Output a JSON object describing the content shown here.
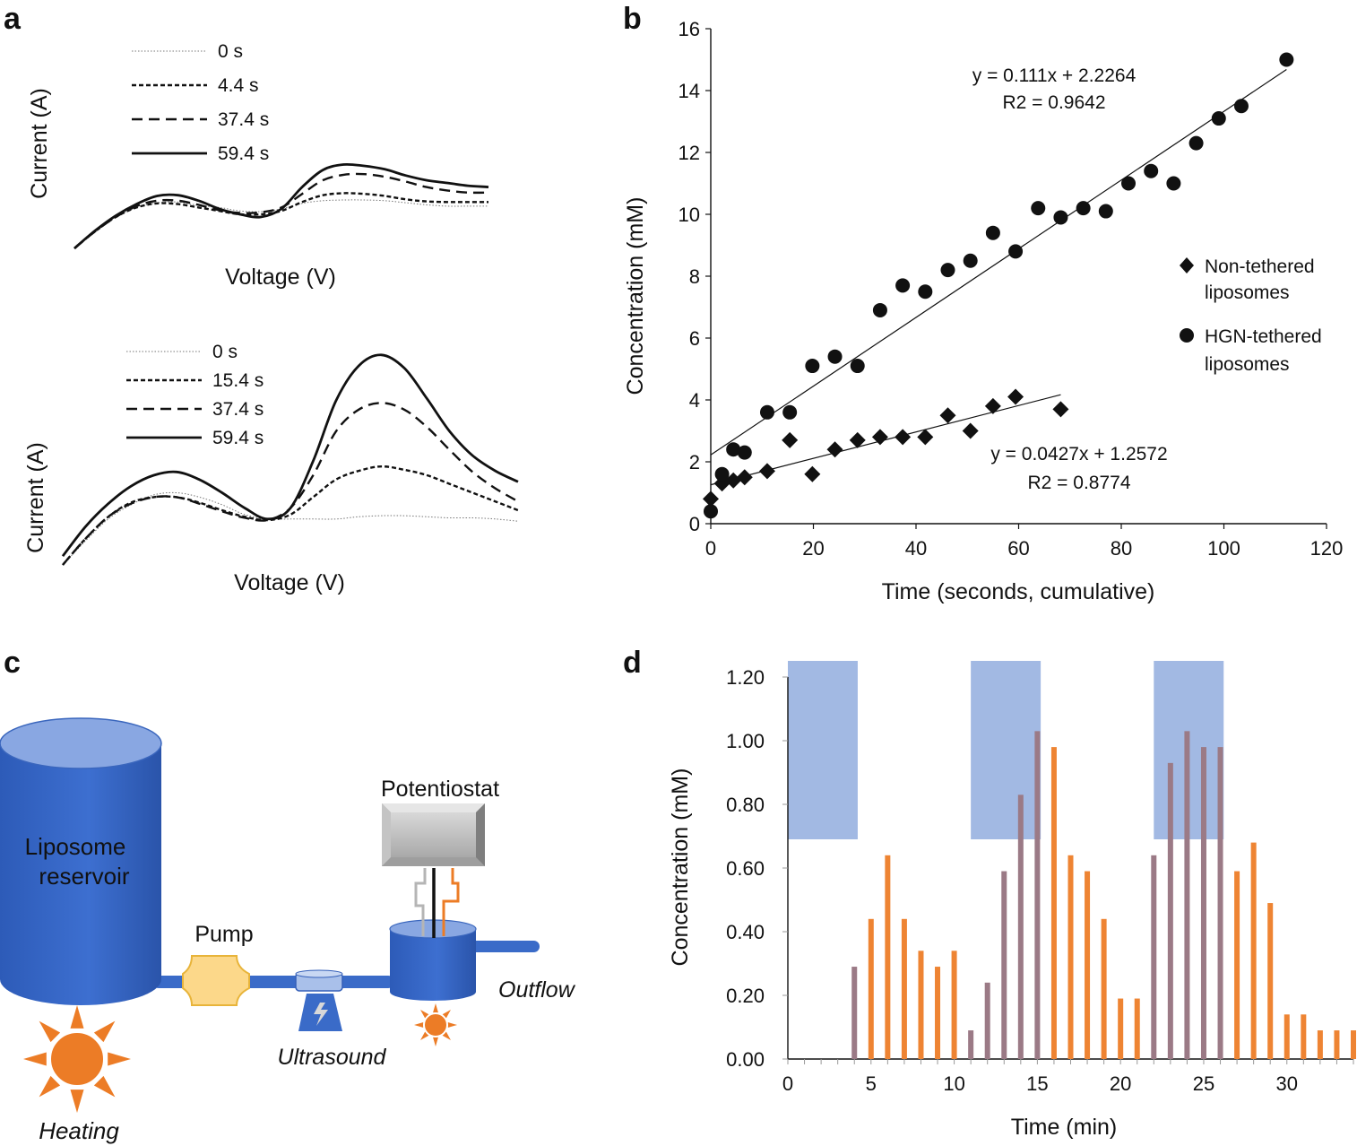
{
  "panel_labels": [
    "a",
    "b",
    "c",
    "d"
  ],
  "chart_data": [
    {
      "id": "a_top",
      "type": "line",
      "xlabel": "Voltage (V)",
      "ylabel": "Current (A)",
      "legend": [
        {
          "label": "0 s",
          "style": "dotted"
        },
        {
          "label": "4.4 s",
          "style": "short-dash"
        },
        {
          "label": "37.4 s",
          "style": "long-dash"
        },
        {
          "label": "59.4 s",
          "style": "solid"
        }
      ],
      "x": [
        0,
        0.05,
        0.1,
        0.15,
        0.2,
        0.25,
        0.3,
        0.35,
        0.4,
        0.45,
        0.5,
        0.55,
        0.6,
        0.65,
        0.7,
        0.75,
        0.8,
        0.85,
        0.9,
        0.95,
        1.0
      ],
      "series": [
        {
          "name": "0 s",
          "values": [
            0,
            0.25,
            0.46,
            0.6,
            0.67,
            0.68,
            0.63,
            0.6,
            0.55,
            0.54,
            0.58,
            0.66,
            0.7,
            0.71,
            0.71,
            0.7,
            0.67,
            0.64,
            0.62,
            0.62,
            0.62
          ]
        },
        {
          "name": "4.4 s",
          "values": [
            0,
            0.25,
            0.46,
            0.6,
            0.66,
            0.65,
            0.6,
            0.55,
            0.5,
            0.5,
            0.55,
            0.68,
            0.78,
            0.81,
            0.8,
            0.77,
            0.72,
            0.69,
            0.68,
            0.68,
            0.68
          ]
        },
        {
          "name": "37.4 s",
          "values": [
            0,
            0.25,
            0.46,
            0.62,
            0.7,
            0.7,
            0.64,
            0.56,
            0.52,
            0.53,
            0.6,
            0.8,
            1.0,
            1.08,
            1.09,
            1.05,
            0.98,
            0.9,
            0.85,
            0.82,
            0.82
          ]
        },
        {
          "name": "59.4 s",
          "values": [
            0,
            0.26,
            0.48,
            0.65,
            0.77,
            0.78,
            0.7,
            0.58,
            0.5,
            0.46,
            0.58,
            0.9,
            1.15,
            1.23,
            1.21,
            1.16,
            1.07,
            1.0,
            0.96,
            0.92,
            0.9
          ]
        }
      ]
    },
    {
      "id": "a_bottom",
      "type": "line",
      "xlabel": "Voltage (V)",
      "ylabel": "Current (A)",
      "legend": [
        {
          "label": "0 s",
          "style": "dotted"
        },
        {
          "label": "15.4 s",
          "style": "short-dash"
        },
        {
          "label": "37.4 s",
          "style": "long-dash"
        },
        {
          "label": "59.4 s",
          "style": "solid"
        }
      ],
      "x": [
        0,
        0.05,
        0.1,
        0.15,
        0.2,
        0.25,
        0.3,
        0.35,
        0.4,
        0.45,
        0.5,
        0.55,
        0.6,
        0.65,
        0.7,
        0.75,
        0.8,
        0.85,
        0.9,
        0.95,
        1.0
      ],
      "series": [
        {
          "name": "0 s",
          "values": [
            0,
            0.22,
            0.42,
            0.55,
            0.64,
            0.66,
            0.62,
            0.55,
            0.46,
            0.42,
            0.42,
            0.42,
            0.42,
            0.44,
            0.45,
            0.45,
            0.44,
            0.43,
            0.43,
            0.42,
            0.4
          ]
        },
        {
          "name": "15.4 s",
          "values": [
            0,
            0.24,
            0.44,
            0.57,
            0.62,
            0.62,
            0.57,
            0.5,
            0.44,
            0.41,
            0.46,
            0.62,
            0.78,
            0.86,
            0.9,
            0.87,
            0.82,
            0.74,
            0.66,
            0.58,
            0.5
          ]
        },
        {
          "name": "37.4 s",
          "values": [
            0,
            0.24,
            0.44,
            0.56,
            0.62,
            0.62,
            0.56,
            0.49,
            0.43,
            0.41,
            0.52,
            0.82,
            1.22,
            1.42,
            1.48,
            1.42,
            1.26,
            1.05,
            0.85,
            0.7,
            0.58
          ]
        },
        {
          "name": "59.4 s",
          "values": [
            0.08,
            0.35,
            0.56,
            0.72,
            0.82,
            0.85,
            0.78,
            0.66,
            0.52,
            0.42,
            0.52,
            0.95,
            1.5,
            1.82,
            1.92,
            1.8,
            1.52,
            1.22,
            1.0,
            0.86,
            0.76
          ]
        }
      ]
    },
    {
      "id": "b",
      "type": "scatter",
      "xlabel": "Time (seconds, cumulative)",
      "ylabel": "Concentration (mM)",
      "xlim": [
        0,
        120
      ],
      "ylim": [
        0,
        16
      ],
      "xticks": [
        0,
        20,
        40,
        60,
        80,
        100,
        120
      ],
      "yticks": [
        0,
        2,
        4,
        6,
        8,
        10,
        12,
        14,
        16
      ],
      "series": [
        {
          "name": "Non-tethered liposomes",
          "marker": "diamond",
          "x": [
            0,
            2.2,
            4.4,
            6.6,
            11,
            15.4,
            19.8,
            24.2,
            28.6,
            33,
            37.4,
            41.8,
            46.2,
            50.6,
            55,
            59.4,
            68.2
          ],
          "y": [
            0.8,
            1.3,
            1.4,
            1.5,
            1.7,
            2.7,
            1.6,
            2.4,
            2.7,
            2.8,
            2.8,
            2.8,
            3.5,
            3.0,
            3.8,
            4.1,
            3.7
          ]
        },
        {
          "name": "HGN-tethered liposomes",
          "marker": "circle",
          "x": [
            0,
            2.2,
            4.4,
            6.6,
            11,
            15.4,
            19.8,
            24.2,
            28.6,
            33,
            37.4,
            41.8,
            46.2,
            50.6,
            55,
            59.4,
            63.8,
            68.2,
            72.6,
            77,
            81.4,
            85.8,
            90.2,
            94.6,
            99,
            103.4,
            112.2
          ],
          "y": [
            0.4,
            1.6,
            2.4,
            2.3,
            3.6,
            3.6,
            5.1,
            5.4,
            5.1,
            6.9,
            7.7,
            7.5,
            8.2,
            8.5,
            9.4,
            8.8,
            10.2,
            9.9,
            10.2,
            10.1,
            11.0,
            11.4,
            11.0,
            12.3,
            13.1,
            13.5,
            15.0
          ]
        }
      ],
      "fits": [
        {
          "series": "HGN-tethered liposomes",
          "slope": 0.111,
          "intercept": 2.2264,
          "x_range": [
            0,
            112.2
          ],
          "equation": "y = 0.111x + 2.2264",
          "r2": "R2 = 0.9642"
        },
        {
          "series": "Non-tethered liposomes",
          "slope": 0.0427,
          "intercept": 1.2572,
          "x_range": [
            0,
            68.2
          ],
          "equation": "y = 0.0427x + 1.2572",
          "r2": "R2 = 0.8774"
        }
      ],
      "legend": [
        "Non-tethered liposomes",
        "HGN-tethered liposomes"
      ]
    },
    {
      "id": "d",
      "type": "bar",
      "xlabel": "Time (min)",
      "ylabel": "Concentration (mM)",
      "xlim": [
        0,
        34
      ],
      "ylim": [
        0,
        1.2
      ],
      "xticks": [
        0,
        5,
        10,
        15,
        20,
        25,
        30
      ],
      "yticks": [
        "0.00",
        "0.20",
        "0.40",
        "0.60",
        "0.80",
        "1.00",
        "1.20"
      ],
      "bar_color": "#ee8433",
      "shade_color": "#98b1e0",
      "shaded_intervals": [
        [
          0,
          4.2
        ],
        [
          11,
          15.2
        ],
        [
          22,
          26.2
        ]
      ],
      "x": [
        4,
        5,
        6,
        7,
        8,
        9,
        10,
        11,
        12,
        13,
        14,
        15,
        16,
        17,
        18,
        19,
        20,
        21,
        22,
        23,
        24,
        25,
        26,
        27,
        28,
        29,
        30,
        31,
        32,
        33,
        34
      ],
      "values": [
        0.29,
        0.44,
        0.64,
        0.44,
        0.34,
        0.29,
        0.34,
        0.09,
        0.24,
        0.59,
        0.83,
        1.03,
        0.98,
        0.64,
        0.59,
        0.44,
        0.19,
        0.19,
        0.64,
        0.93,
        1.03,
        0.98,
        0.98,
        0.59,
        0.68,
        0.49,
        0.14,
        0.14,
        0.09,
        0.09,
        0.09
      ]
    }
  ],
  "diagram_c": {
    "reservoir_label": [
      "Liposome",
      "reservoir"
    ],
    "pump_label": "Pump",
    "potentiostat_label": "Potentiostat",
    "ultrasound_label": "Ultrasound",
    "outflow_label": "Outflow",
    "heating_label": "Heating",
    "colors": {
      "blue": "#3565c4",
      "blue_light": "#7e9fdf",
      "orange": "#ec7c26",
      "pump_fill": "#fcd88a",
      "pump_stroke": "#e8b43a",
      "gray": "#bdbdbd"
    }
  }
}
